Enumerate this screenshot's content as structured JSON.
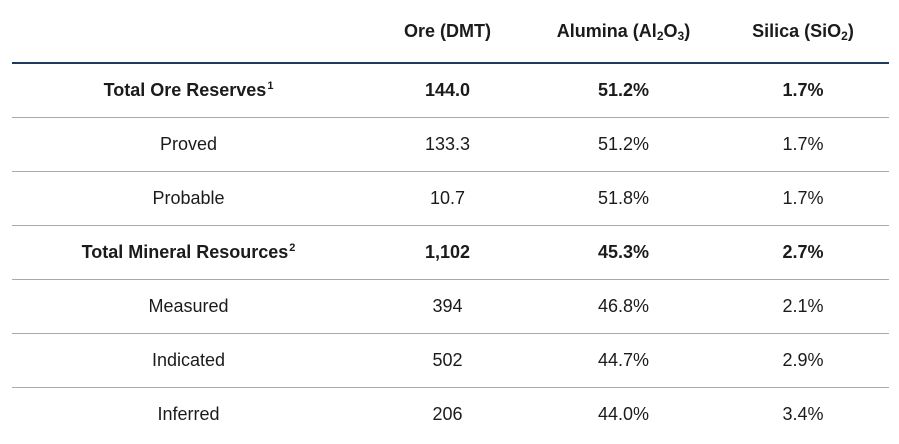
{
  "table": {
    "headers": {
      "label": "",
      "ore": "Ore (DMT)",
      "alumina": {
        "prefix": "Alumina (Al",
        "sub1": "2",
        "mid": "O",
        "sub2": "3",
        "suffix": ")"
      },
      "silica": {
        "prefix": "Silica (SiO",
        "sub1": "2",
        "suffix": ")"
      }
    },
    "rows": [
      {
        "label": "Total Ore Reserves",
        "note": "1",
        "ore": "144.0",
        "alumina": "51.2%",
        "silica": "1.7%",
        "bold": true
      },
      {
        "label": "Proved",
        "note": "",
        "ore": "133.3",
        "alumina": "51.2%",
        "silica": "1.7%",
        "bold": false
      },
      {
        "label": "Probable",
        "note": "",
        "ore": "10.7",
        "alumina": "51.8%",
        "silica": "1.7%",
        "bold": false
      },
      {
        "label": "Total Mineral Resources",
        "note": "2",
        "ore": "1,102",
        "alumina": "45.3%",
        "silica": "2.7%",
        "bold": true
      },
      {
        "label": "Measured",
        "note": "",
        "ore": "394",
        "alumina": "46.8%",
        "silica": "2.1%",
        "bold": false
      },
      {
        "label": "Indicated",
        "note": "",
        "ore": "502",
        "alumina": "44.7%",
        "silica": "2.9%",
        "bold": false
      },
      {
        "label": "Inferred",
        "note": "",
        "ore": "206",
        "alumina": "44.0%",
        "silica": "3.4%",
        "bold": false
      }
    ]
  },
  "colors": {
    "header_rule": "#1f3a5c",
    "row_rule": "#e0a635"
  }
}
